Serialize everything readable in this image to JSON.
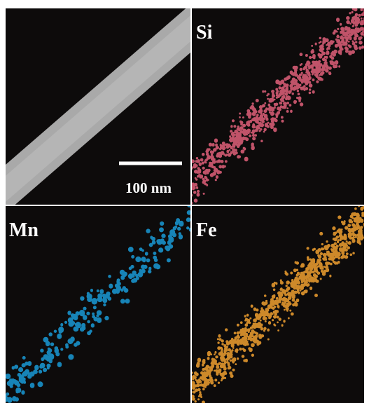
{
  "scale_bar": {
    "label": "100 nm"
  },
  "panels": [
    {
      "label": "Si",
      "color": "#e0607a"
    },
    {
      "label": "Mn",
      "color": "#1a9ad6"
    },
    {
      "label": "Fe",
      "color": "#f0a030"
    }
  ]
}
